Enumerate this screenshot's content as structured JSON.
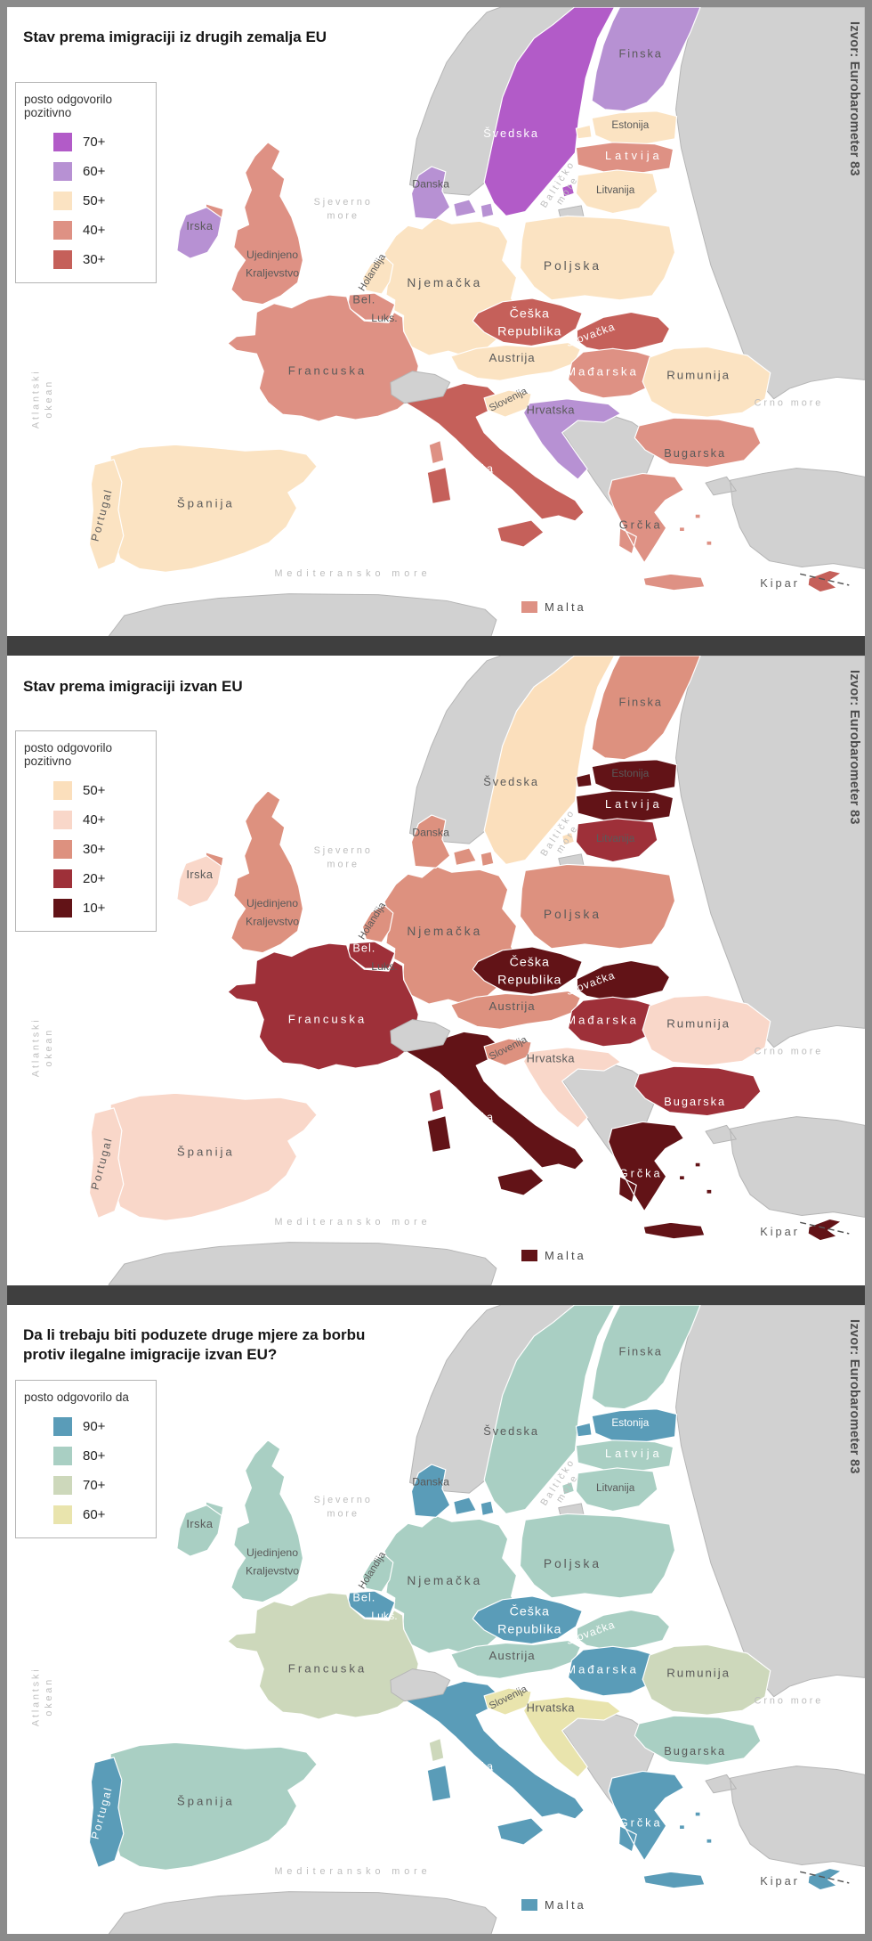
{
  "source_label": "Izvor: Eurobarometer 83",
  "colors": {
    "non_eu_fill": "#d1d1d1",
    "non_eu_stroke": "#b5b5b5",
    "eu_stroke": "#ffffff",
    "sea": "#ffffff",
    "dark_label": "#5a5a5a",
    "light_label": "#ffffff",
    "sea_label": "#bdbdbd",
    "frame": "#8b8b8b",
    "separator": "#3f3f3f"
  },
  "sea_labels": {
    "atlantic": {
      "line1": "Atlantski",
      "line2": "okean"
    },
    "north": {
      "line1": "Sjeverno",
      "line2": "more"
    },
    "baltic": {
      "line1": "Baltičko",
      "line2": "more"
    },
    "mediterranean": {
      "text": "Mediteransko more"
    },
    "black": {
      "text": "Crno more"
    }
  },
  "maps": [
    {
      "title_lines": [
        "Stav prema imigraciji iz drugih zemalja EU"
      ],
      "legend": {
        "title": "posto odgovorilo pozitivno",
        "items": [
          {
            "label": "70+",
            "color": "#b25bc8"
          },
          {
            "label": "60+",
            "color": "#b791d3"
          },
          {
            "label": "50+",
            "color": "#fbe3c2"
          },
          {
            "label": "40+",
            "color": "#de9184"
          },
          {
            "label": "30+",
            "color": "#c5605a"
          }
        ]
      },
      "malta": {
        "label": "Malta",
        "cat": "40+"
      },
      "countries": {
        "svedska": {
          "label": "Švedska",
          "cat": "70+",
          "light": true
        },
        "finska": {
          "label": "Finska",
          "cat": "60+"
        },
        "estonija": {
          "label": "Estonija",
          "cat": "50+"
        },
        "latvija": {
          "label": "Latvija",
          "cat": "40+",
          "light": true
        },
        "litvanija": {
          "label": "Litvanija",
          "cat": "50+"
        },
        "danska": {
          "label": "Danska",
          "cat": "60+"
        },
        "irska": {
          "label": "Irska",
          "cat": "60+"
        },
        "uk": {
          "label": "Ujedinjeno Kraljevstvo",
          "cat": "40+"
        },
        "holandija": {
          "label": "Holandija",
          "cat": "50+"
        },
        "bel": {
          "label": "Bel.",
          "cat": "40+"
        },
        "luks": {
          "label": "Luks.",
          "cat": "70+"
        },
        "njemacka": {
          "label": "Njemačka",
          "cat": "50+"
        },
        "poljska": {
          "label": "Poljska",
          "cat": "50+"
        },
        "ceska": {
          "label": "Češka Republika",
          "cat": "30+",
          "light": true
        },
        "slovacka": {
          "label": "Slovačka",
          "cat": "30+",
          "light": true
        },
        "austrija": {
          "label": "Austrija",
          "cat": "50+"
        },
        "madjarska": {
          "label": "Mađarska",
          "cat": "40+",
          "light": true
        },
        "slovenija": {
          "label": "Slovenija",
          "cat": "50+"
        },
        "hrvatska": {
          "label": "Hrvatska",
          "cat": "60+"
        },
        "rumunija": {
          "label": "Rumunija",
          "cat": "50+"
        },
        "bugarska": {
          "label": "Bugarska",
          "cat": "40+"
        },
        "grcka": {
          "label": "Grčka",
          "cat": "40+"
        },
        "italija": {
          "label": "Italija",
          "cat": "30+",
          "light": true
        },
        "francuska": {
          "label": "Francuska",
          "cat": "40+"
        },
        "spanija": {
          "label": "Španija",
          "cat": "50+"
        },
        "portugal": {
          "label": "Portugal",
          "cat": "50+"
        },
        "kipar": {
          "label": "Kipar",
          "cat": "30+"
        }
      }
    },
    {
      "title_lines": [
        "Stav prema imigraciji izvan EU"
      ],
      "legend": {
        "title": "posto odgovorilo pozitivno",
        "items": [
          {
            "label": "50+",
            "color": "#fbdfbc"
          },
          {
            "label": "40+",
            "color": "#f9d7c9"
          },
          {
            "label": "30+",
            "color": "#dd917f"
          },
          {
            "label": "20+",
            "color": "#9e3039"
          },
          {
            "label": "10+",
            "color": "#621317"
          }
        ]
      },
      "malta": {
        "label": "Malta",
        "cat": "10+"
      },
      "countries": {
        "svedska": {
          "label": "Švedska",
          "cat": "50+"
        },
        "finska": {
          "label": "Finska",
          "cat": "30+"
        },
        "estonija": {
          "label": "Estonija",
          "cat": "10+"
        },
        "latvija": {
          "label": "Latvija",
          "cat": "10+",
          "light": true
        },
        "litvanija": {
          "label": "Litvanija",
          "cat": "20+"
        },
        "danska": {
          "label": "Danska",
          "cat": "30+"
        },
        "irska": {
          "label": "Irska",
          "cat": "40+"
        },
        "uk": {
          "label": "Ujedinjeno Kraljevstvo",
          "cat": "30+"
        },
        "holandija": {
          "label": "Holandija",
          "cat": "30+"
        },
        "bel": {
          "label": "Bel.",
          "cat": "20+",
          "light": true
        },
        "luks": {
          "label": "Luks.",
          "cat": "40+"
        },
        "njemacka": {
          "label": "Njemačka",
          "cat": "30+"
        },
        "poljska": {
          "label": "Poljska",
          "cat": "30+"
        },
        "ceska": {
          "label": "Češka Republika",
          "cat": "10+",
          "light": true
        },
        "slovacka": {
          "label": "Slovačka",
          "cat": "10+",
          "light": true
        },
        "austrija": {
          "label": "Austrija",
          "cat": "30+"
        },
        "madjarska": {
          "label": "Mađarska",
          "cat": "20+",
          "light": true
        },
        "slovenija": {
          "label": "Slovenija",
          "cat": "30+"
        },
        "hrvatska": {
          "label": "Hrvatska",
          "cat": "40+"
        },
        "rumunija": {
          "label": "Rumunija",
          "cat": "40+"
        },
        "bugarska": {
          "label": "Bugarska",
          "cat": "20+",
          "light": true
        },
        "grcka": {
          "label": "Grčka",
          "cat": "10+",
          "light": true
        },
        "italija": {
          "label": "Italija",
          "cat": "10+",
          "light": true
        },
        "francuska": {
          "label": "Francuska",
          "cat": "20+",
          "light": true
        },
        "spanija": {
          "label": "Španija",
          "cat": "40+"
        },
        "portugal": {
          "label": "Portugal",
          "cat": "40+"
        },
        "kipar": {
          "label": "Kipar",
          "cat": "10+"
        }
      }
    },
    {
      "title_lines": [
        "Da li trebaju biti poduzete druge mjere za borbu",
        "protiv ilegalne imigracije izvan EU?"
      ],
      "legend": {
        "title": "posto odgovorilo da",
        "items": [
          {
            "label": "90+",
            "color": "#5a9cb8"
          },
          {
            "label": "80+",
            "color": "#a9cfc3"
          },
          {
            "label": "70+",
            "color": "#cdd8bb"
          },
          {
            "label": "60+",
            "color": "#e9e4ad"
          }
        ]
      },
      "malta": {
        "label": "Malta",
        "cat": "90+"
      },
      "countries": {
        "svedska": {
          "label": "Švedska",
          "cat": "80+"
        },
        "finska": {
          "label": "Finska",
          "cat": "80+"
        },
        "estonija": {
          "label": "Estonija",
          "cat": "90+",
          "light": true
        },
        "latvija": {
          "label": "Latvija",
          "cat": "80+",
          "light": true
        },
        "litvanija": {
          "label": "Litvanija",
          "cat": "80+"
        },
        "danska": {
          "label": "Danska",
          "cat": "90+"
        },
        "irska": {
          "label": "Irska",
          "cat": "80+"
        },
        "uk": {
          "label": "Ujedinjeno Kraljevstvo",
          "cat": "80+"
        },
        "holandija": {
          "label": "Holandija",
          "cat": "80+"
        },
        "bel": {
          "label": "Bel.",
          "cat": "90+",
          "light": true
        },
        "luks": {
          "label": "Luks.",
          "cat": "90+",
          "light": true
        },
        "njemacka": {
          "label": "Njemačka",
          "cat": "80+"
        },
        "poljska": {
          "label": "Poljska",
          "cat": "80+"
        },
        "ceska": {
          "label": "Češka Republika",
          "cat": "90+",
          "light": true
        },
        "slovacka": {
          "label": "Slovačka",
          "cat": "80+",
          "light": true
        },
        "austrija": {
          "label": "Austrija",
          "cat": "80+"
        },
        "madjarska": {
          "label": "Mađarska",
          "cat": "90+",
          "light": true
        },
        "slovenija": {
          "label": "Slovenija",
          "cat": "60+"
        },
        "hrvatska": {
          "label": "Hrvatska",
          "cat": "60+"
        },
        "rumunija": {
          "label": "Rumunija",
          "cat": "70+"
        },
        "bugarska": {
          "label": "Bugarska",
          "cat": "80+"
        },
        "grcka": {
          "label": "Grčka",
          "cat": "90+",
          "light": true
        },
        "italija": {
          "label": "Italija",
          "cat": "90+",
          "light": true
        },
        "francuska": {
          "label": "Francuska",
          "cat": "70+"
        },
        "spanija": {
          "label": "Španija",
          "cat": "80+"
        },
        "portugal": {
          "label": "Portugal",
          "cat": "90+",
          "light": true
        },
        "kipar": {
          "label": "Kipar",
          "cat": "90+"
        }
      }
    }
  ]
}
